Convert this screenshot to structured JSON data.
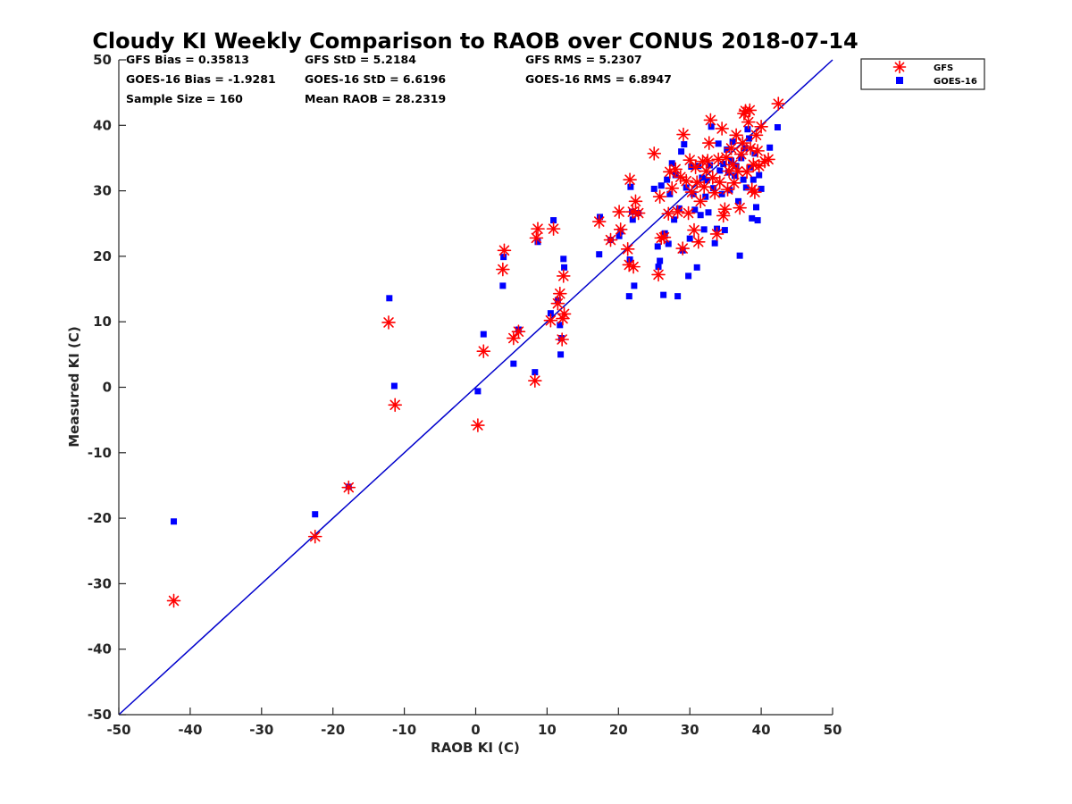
{
  "chart_data": {
    "type": "scatter",
    "title": "Cloudy KI Weekly Comparison to RAOB over CONUS 2018-07-14",
    "xlabel": "RAOB KI (C)",
    "ylabel": "Measured KI (C)",
    "xlim": [
      -50,
      50
    ],
    "ylim": [
      -50,
      50
    ],
    "xticks": [
      -50,
      -40,
      -30,
      -20,
      -10,
      0,
      10,
      20,
      30,
      40,
      50
    ],
    "yticks": [
      -50,
      -40,
      -30,
      -20,
      -10,
      0,
      10,
      20,
      30,
      40,
      50
    ],
    "grid": false,
    "legend_position": "top-right",
    "stats": [
      "GFS Bias = 0.35813",
      "GFS StD = 5.2184",
      "GFS RMS = 5.2307",
      "GOES-16 Bias = -1.9281",
      "GOES-16 StD = 6.6196",
      "GOES-16 RMS = 6.8947",
      "Sample Size = 160",
      "Mean RAOB = 28.2319"
    ],
    "reference_line": {
      "x": [
        -50,
        50
      ],
      "y": [
        -50,
        50
      ],
      "color": "#0000cc"
    },
    "series": [
      {
        "name": "GFS",
        "marker": "asterisk",
        "color": "#ff0000",
        "points": [
          [
            -42.3,
            -32.6
          ],
          [
            -22.5,
            -22.8
          ],
          [
            -17.8,
            -15.3
          ],
          [
            -12.2,
            9.9
          ],
          [
            -11.3,
            -2.7
          ],
          [
            0.3,
            -5.8
          ],
          [
            1.1,
            5.5
          ],
          [
            3.8,
            18.0
          ],
          [
            4.0,
            20.9
          ],
          [
            5.3,
            7.5
          ],
          [
            6.0,
            8.5
          ],
          [
            8.3,
            1.0
          ],
          [
            8.5,
            22.8
          ],
          [
            8.7,
            24.2
          ],
          [
            10.5,
            10.2
          ],
          [
            10.9,
            24.2
          ],
          [
            11.5,
            12.8
          ],
          [
            11.8,
            14.3
          ],
          [
            12.1,
            7.3
          ],
          [
            12.2,
            10.5
          ],
          [
            12.4,
            11.2
          ],
          [
            12.3,
            17.0
          ],
          [
            17.3,
            25.3
          ],
          [
            18.9,
            22.5
          ],
          [
            20.1,
            26.8
          ],
          [
            20.3,
            24.1
          ],
          [
            21.3,
            21.1
          ],
          [
            21.5,
            18.7
          ],
          [
            21.6,
            31.7
          ],
          [
            22.0,
            26.8
          ],
          [
            22.1,
            18.4
          ],
          [
            22.4,
            28.4
          ],
          [
            22.8,
            26.6
          ],
          [
            25.0,
            35.7
          ],
          [
            25.6,
            17.2
          ],
          [
            25.8,
            29.1
          ],
          [
            26.0,
            22.8
          ],
          [
            26.4,
            22.9
          ],
          [
            27.0,
            26.5
          ],
          [
            27.2,
            32.9
          ],
          [
            27.5,
            30.4
          ],
          [
            28.0,
            33.3
          ],
          [
            28.3,
            26.8
          ],
          [
            28.7,
            32.1
          ],
          [
            29.0,
            21.2
          ],
          [
            29.1,
            38.6
          ],
          [
            29.5,
            31.5
          ],
          [
            29.8,
            26.6
          ],
          [
            30.0,
            34.7
          ],
          [
            30.3,
            29.8
          ],
          [
            30.6,
            24.0
          ],
          [
            30.8,
            33.6
          ],
          [
            31.0,
            31.3
          ],
          [
            31.2,
            22.2
          ],
          [
            31.5,
            28.4
          ],
          [
            31.8,
            34.5
          ],
          [
            32.0,
            30.6
          ],
          [
            32.3,
            33.0
          ],
          [
            32.5,
            34.6
          ],
          [
            32.7,
            37.3
          ],
          [
            32.9,
            40.8
          ],
          [
            33.2,
            32.0
          ],
          [
            33.5,
            29.7
          ],
          [
            33.8,
            23.4
          ],
          [
            34.0,
            34.8
          ],
          [
            34.2,
            31.3
          ],
          [
            34.5,
            39.5
          ],
          [
            34.7,
            26.2
          ],
          [
            34.9,
            27.2
          ],
          [
            35.1,
            35.1
          ],
          [
            35.3,
            30.2
          ],
          [
            35.5,
            33.0
          ],
          [
            35.8,
            36.5
          ],
          [
            36.0,
            34.0
          ],
          [
            36.2,
            31.2
          ],
          [
            36.5,
            38.5
          ],
          [
            36.7,
            33.0
          ],
          [
            37.0,
            27.4
          ],
          [
            37.2,
            35.6
          ],
          [
            37.4,
            37.3
          ],
          [
            37.6,
            41.8
          ],
          [
            37.8,
            42.2
          ],
          [
            38.0,
            32.9
          ],
          [
            38.2,
            40.5
          ],
          [
            38.4,
            42.3
          ],
          [
            38.5,
            36.5
          ],
          [
            38.7,
            30.2
          ],
          [
            38.9,
            34.0
          ],
          [
            39.1,
            29.8
          ],
          [
            39.3,
            38.5
          ],
          [
            39.5,
            36.1
          ],
          [
            39.7,
            33.8
          ],
          [
            40.0,
            39.8
          ],
          [
            40.5,
            34.5
          ],
          [
            41.0,
            34.8
          ],
          [
            42.4,
            43.3
          ]
        ]
      },
      {
        "name": "GOES-16",
        "marker": "square",
        "color": "#0000ff",
        "points": [
          [
            -42.3,
            -20.5
          ],
          [
            -22.5,
            -19.4
          ],
          [
            -17.8,
            -15.2
          ],
          [
            -12.1,
            13.6
          ],
          [
            -11.4,
            0.2
          ],
          [
            0.3,
            -0.6
          ],
          [
            1.1,
            8.1
          ],
          [
            3.8,
            15.5
          ],
          [
            3.9,
            19.9
          ],
          [
            5.3,
            3.6
          ],
          [
            6.0,
            8.8
          ],
          [
            8.3,
            2.3
          ],
          [
            8.7,
            22.2
          ],
          [
            10.5,
            11.3
          ],
          [
            10.9,
            25.5
          ],
          [
            11.5,
            13.3
          ],
          [
            11.8,
            9.5
          ],
          [
            11.9,
            5.0
          ],
          [
            12.0,
            7.5
          ],
          [
            12.3,
            19.6
          ],
          [
            12.4,
            18.3
          ],
          [
            17.3,
            20.3
          ],
          [
            17.4,
            26.0
          ],
          [
            18.9,
            22.5
          ],
          [
            20.1,
            23.1
          ],
          [
            20.3,
            23.8
          ],
          [
            21.5,
            13.9
          ],
          [
            21.6,
            19.5
          ],
          [
            21.7,
            30.6
          ],
          [
            21.9,
            26.8
          ],
          [
            22.0,
            25.6
          ],
          [
            22.2,
            15.5
          ],
          [
            22.8,
            26.6
          ],
          [
            25.0,
            30.3
          ],
          [
            25.5,
            21.5
          ],
          [
            25.6,
            18.4
          ],
          [
            25.8,
            19.3
          ],
          [
            26.0,
            30.8
          ],
          [
            26.3,
            14.1
          ],
          [
            26.5,
            23.5
          ],
          [
            26.8,
            31.7
          ],
          [
            27.0,
            21.9
          ],
          [
            27.2,
            29.5
          ],
          [
            27.5,
            34.2
          ],
          [
            27.8,
            25.6
          ],
          [
            28.0,
            32.4
          ],
          [
            28.3,
            13.9
          ],
          [
            28.5,
            27.3
          ],
          [
            28.8,
            36.0
          ],
          [
            29.0,
            20.9
          ],
          [
            29.2,
            37.1
          ],
          [
            29.5,
            30.5
          ],
          [
            29.8,
            17.0
          ],
          [
            30.0,
            22.7
          ],
          [
            30.2,
            33.7
          ],
          [
            30.5,
            29.5
          ],
          [
            30.7,
            27.1
          ],
          [
            31.0,
            18.3
          ],
          [
            31.2,
            33.8
          ],
          [
            31.5,
            26.3
          ],
          [
            31.7,
            32.0
          ],
          [
            32.0,
            24.1
          ],
          [
            32.2,
            29.1
          ],
          [
            32.4,
            31.6
          ],
          [
            32.6,
            26.7
          ],
          [
            32.8,
            33.9
          ],
          [
            33.0,
            39.8
          ],
          [
            33.3,
            30.4
          ],
          [
            33.5,
            22.0
          ],
          [
            33.8,
            24.2
          ],
          [
            34.0,
            37.2
          ],
          [
            34.2,
            33.1
          ],
          [
            34.5,
            29.5
          ],
          [
            34.7,
            34.1
          ],
          [
            34.9,
            24.0
          ],
          [
            35.2,
            36.3
          ],
          [
            35.4,
            32.8
          ],
          [
            35.6,
            30.1
          ],
          [
            35.8,
            34.6
          ],
          [
            36.0,
            37.5
          ],
          [
            36.3,
            32.3
          ],
          [
            36.5,
            33.8
          ],
          [
            36.8,
            28.4
          ],
          [
            37.0,
            20.1
          ],
          [
            37.2,
            35.0
          ],
          [
            37.5,
            31.7
          ],
          [
            37.7,
            36.5
          ],
          [
            37.9,
            30.5
          ],
          [
            38.1,
            39.4
          ],
          [
            38.3,
            38.0
          ],
          [
            38.5,
            33.6
          ],
          [
            38.7,
            25.8
          ],
          [
            38.9,
            31.7
          ],
          [
            39.1,
            35.7
          ],
          [
            39.3,
            27.5
          ],
          [
            39.5,
            25.5
          ],
          [
            39.7,
            32.4
          ],
          [
            40.0,
            30.3
          ],
          [
            41.2,
            36.6
          ],
          [
            42.3,
            39.7
          ]
        ]
      }
    ]
  }
}
